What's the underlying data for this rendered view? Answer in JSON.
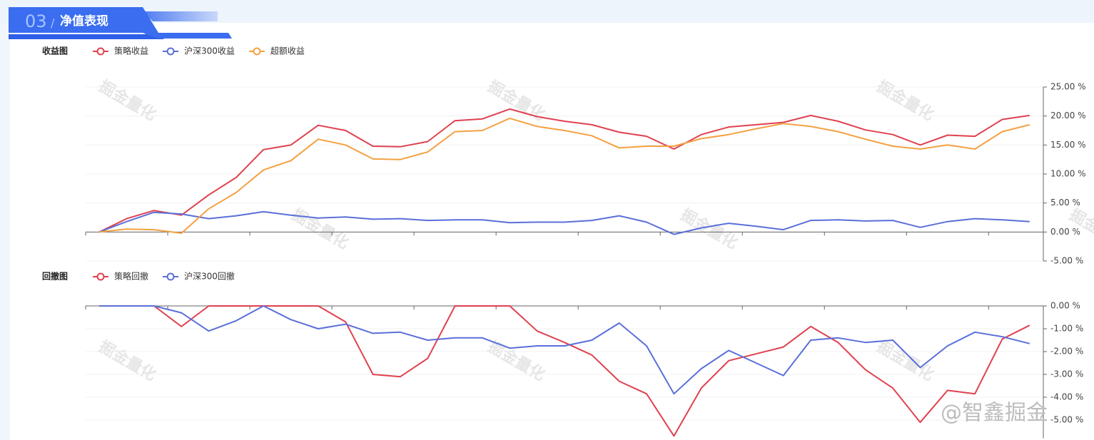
{
  "header": {
    "number": "03",
    "title": "净值表现"
  },
  "watermark": "掘金量化",
  "weibo_watermark": "@智鑫掘金",
  "chart_data": [
    {
      "type": "line",
      "title": "收益图",
      "ylim": [
        -5,
        25
      ],
      "yticks": [
        {
          "value": 25,
          "label": "25.00 %"
        },
        {
          "value": 20,
          "label": "20.00 %"
        },
        {
          "value": 15,
          "label": "15.00 %"
        },
        {
          "value": 10,
          "label": "10.00 %"
        },
        {
          "value": 5,
          "label": "5.00 %"
        },
        {
          "value": 0,
          "label": "0.00 %"
        },
        {
          "value": -5,
          "label": "-5.00 %"
        }
      ],
      "grid": true,
      "series": [
        {
          "name": "策略收益",
          "color": "#e0414f",
          "values": [
            0,
            2.3,
            3.7,
            2.9,
            6.4,
            9.4,
            14.2,
            15.0,
            18.4,
            17.5,
            14.8,
            14.7,
            15.6,
            19.2,
            19.5,
            21.2,
            19.9,
            19.1,
            18.5,
            17.2,
            16.5,
            14.3,
            16.8,
            18.1,
            18.5,
            18.9,
            20.1,
            19.1,
            17.6,
            16.8,
            15.0,
            16.7,
            16.5,
            19.4,
            20.1
          ]
        },
        {
          "name": "沪深300收益",
          "color": "#5a6fd9",
          "values": [
            0,
            1.8,
            3.4,
            3.1,
            2.3,
            2.8,
            3.5,
            2.9,
            2.4,
            2.6,
            2.2,
            2.3,
            2.0,
            2.1,
            2.1,
            1.6,
            1.7,
            1.7,
            2.0,
            2.8,
            1.7,
            -0.4,
            0.7,
            1.5,
            1.0,
            0.4,
            2.0,
            2.1,
            1.9,
            2.0,
            0.8,
            1.8,
            2.3,
            2.1,
            1.8
          ]
        },
        {
          "name": "超额收益",
          "color": "#f4a142",
          "values": [
            0,
            0.5,
            0.4,
            -0.2,
            4.0,
            6.8,
            10.7,
            12.3,
            16.0,
            15.0,
            12.6,
            12.5,
            13.8,
            17.3,
            17.5,
            19.6,
            18.2,
            17.5,
            16.6,
            14.5,
            14.8,
            14.8,
            16.1,
            16.8,
            17.8,
            18.7,
            18.2,
            17.3,
            16.0,
            14.8,
            14.3,
            15.0,
            14.3,
            17.3,
            18.5
          ]
        }
      ]
    },
    {
      "type": "line",
      "title": "回撤图",
      "ylim": [
        -5.8,
        0
      ],
      "yticks": [
        {
          "value": 0,
          "label": "0.00 %"
        },
        {
          "value": -1,
          "label": "-1.00 %"
        },
        {
          "value": -2,
          "label": "-2.00 %"
        },
        {
          "value": -3,
          "label": "-3.00 %"
        },
        {
          "value": -4,
          "label": "-4.00 %"
        },
        {
          "value": -5,
          "label": "-5.00 %"
        }
      ],
      "grid": true,
      "series": [
        {
          "name": "策略回撤",
          "color": "#e0414f",
          "values": [
            0,
            0,
            0,
            -0.9,
            0,
            0,
            0,
            0,
            0,
            -0.7,
            -3.0,
            -3.1,
            -2.3,
            0,
            0,
            0,
            -1.1,
            -1.6,
            -2.15,
            -3.3,
            -3.85,
            -5.7,
            -3.6,
            -2.4,
            -2.1,
            -1.8,
            -0.9,
            -1.6,
            -2.8,
            -3.6,
            -5.1,
            -3.7,
            -3.85,
            -1.45,
            -0.85
          ]
        },
        {
          "name": "沪深300回撤",
          "color": "#5a6fd9",
          "values": [
            0,
            0,
            0,
            -0.3,
            -1.1,
            -0.65,
            0,
            -0.6,
            -1.0,
            -0.8,
            -1.2,
            -1.15,
            -1.5,
            -1.4,
            -1.4,
            -1.85,
            -1.75,
            -1.75,
            -1.5,
            -0.75,
            -1.75,
            -3.85,
            -2.75,
            -1.95,
            -2.5,
            -3.05,
            -1.5,
            -1.4,
            -1.6,
            -1.5,
            -2.7,
            -1.75,
            -1.15,
            -1.35,
            -1.65
          ]
        }
      ]
    }
  ]
}
